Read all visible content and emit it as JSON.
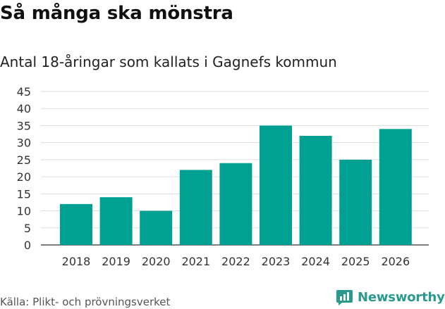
{
  "title": "Så många ska mönstra",
  "subtitle": "Antal 18-åringar som kallats i Gagnefs kommun",
  "source": "Källa: Plikt- och prövningsverket",
  "brand": {
    "name": "Newsworthy",
    "icon": "newsworthy-logo-icon",
    "color": "#2b9a8e"
  },
  "colors": {
    "bar": "#00a193",
    "grid": "#dddddd",
    "axis": "#333333"
  },
  "chart_data": {
    "type": "bar",
    "title": "Så många ska mönstra",
    "subtitle": "Antal 18-åringar som kallats i Gagnefs kommun",
    "xlabel": "",
    "ylabel": "",
    "categories": [
      "2018",
      "2019",
      "2020",
      "2021",
      "2022",
      "2023",
      "2024",
      "2025",
      "2026"
    ],
    "values": [
      12,
      14,
      10,
      22,
      24,
      35,
      32,
      25,
      34
    ],
    "ylim": [
      0,
      45
    ],
    "yticks": [
      0,
      5,
      10,
      15,
      20,
      25,
      30,
      35,
      40,
      45
    ],
    "grid": true,
    "legend": "none"
  }
}
